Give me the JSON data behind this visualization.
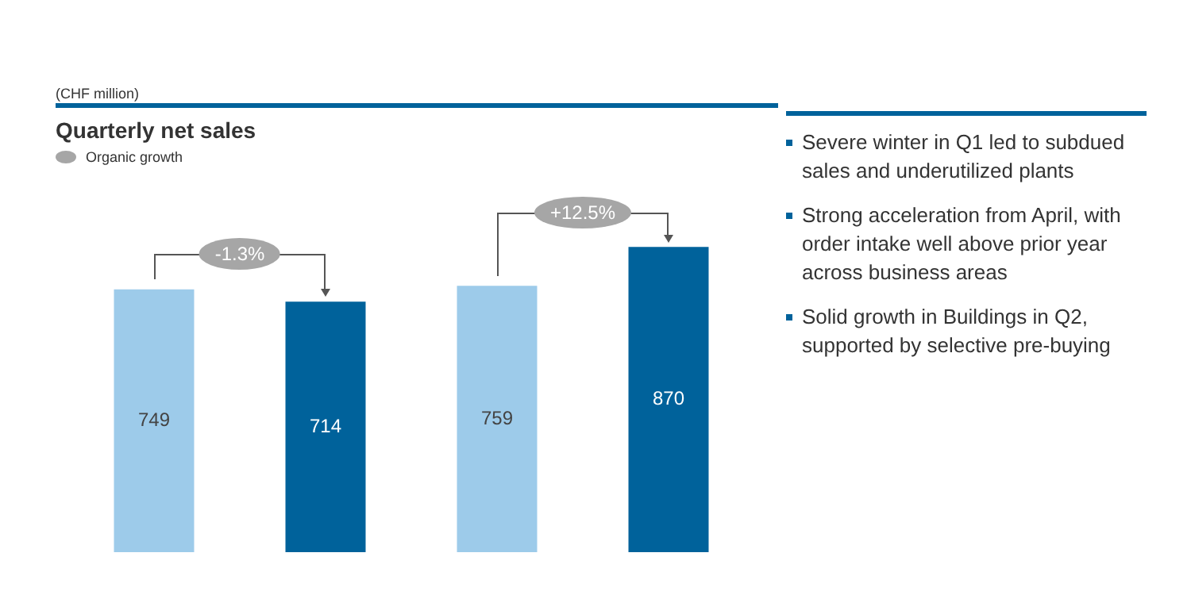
{
  "chart_data": {
    "type": "bar",
    "title": "Quarterly net sales",
    "subtitle": "(CHF million)",
    "categories": [
      null,
      null,
      null,
      null
    ],
    "values": [
      749,
      714,
      759,
      870
    ],
    "colors": [
      "#9dcbea",
      "#00629b",
      "#9dcbea",
      "#00629b"
    ],
    "data_labels": true,
    "grid": false,
    "tick_labels": false,
    "annotations": [
      "-1.3%",
      "+12.5%",
      "Organic growth",
      "Severe winter in Q1 led to subdued sales and underutilized plants",
      "Strong acceleration from April, with order intake well above prior year across business areas",
      "Solid growth in Buildings in Q2, supported by selective pre-buying"
    ]
  }
}
